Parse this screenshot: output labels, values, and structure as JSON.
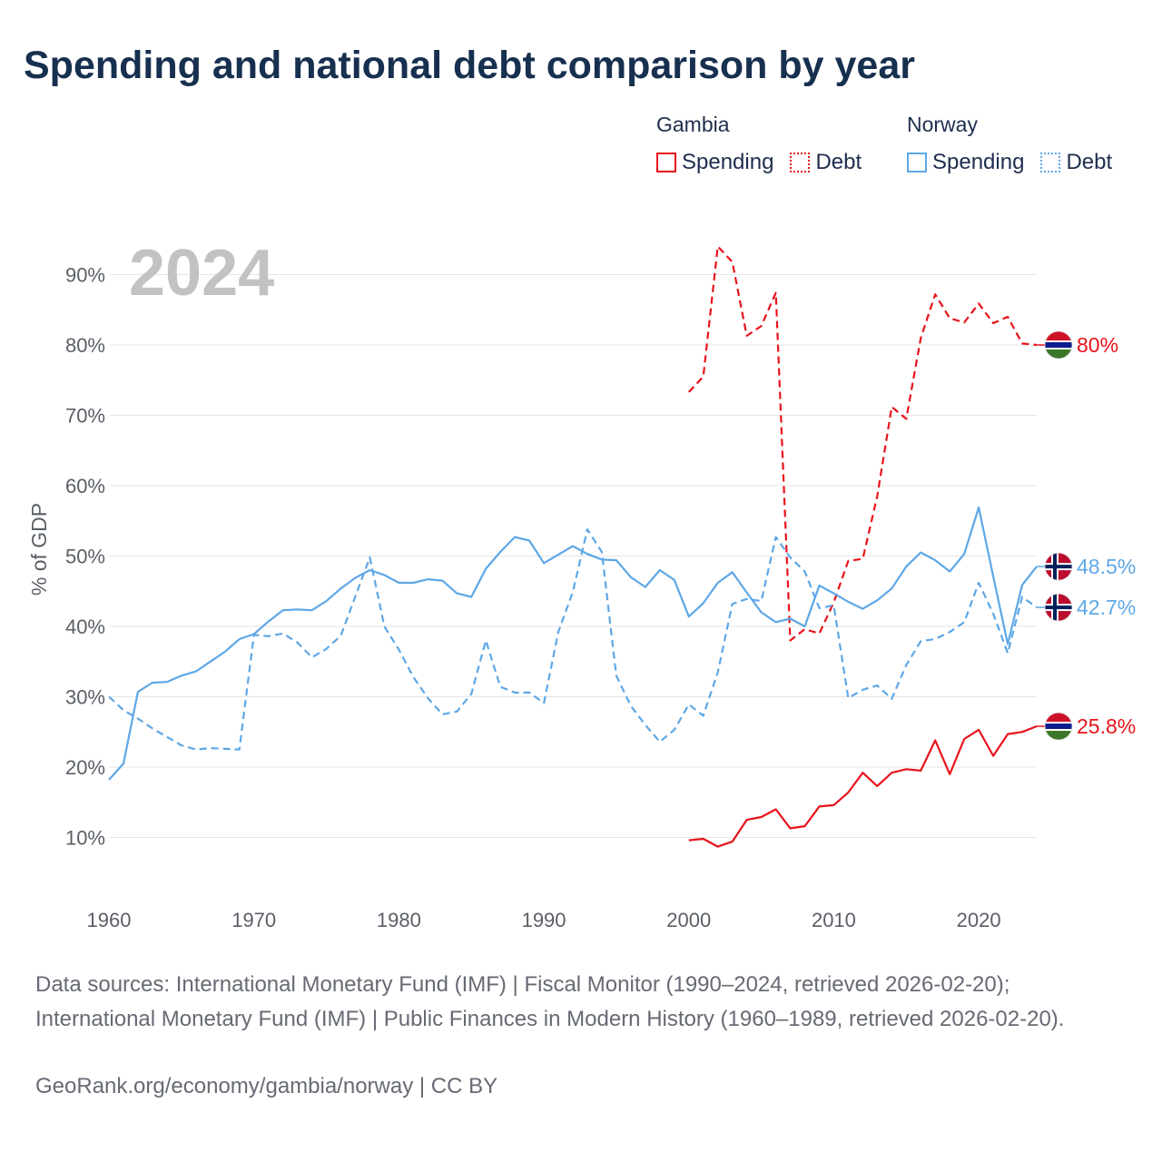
{
  "title": "Spending and national debt comparison by year",
  "legend": {
    "groups": [
      {
        "country": "Gambia",
        "items": [
          {
            "label": "Spending",
            "color": "#e8131b",
            "style": "solid"
          },
          {
            "label": "Debt",
            "color": "#e8131b",
            "style": "dotted"
          }
        ]
      },
      {
        "country": "Norway",
        "items": [
          {
            "label": "Spending",
            "color": "#5ea7e6",
            "style": "solid"
          },
          {
            "label": "Debt",
            "color": "#5ea7e6",
            "style": "dotted"
          }
        ]
      }
    ]
  },
  "footer": {
    "source": "Data sources: International Monetary Fund (IMF) | Fiscal Monitor (1990–2024, retrieved 2026-02-20); International Monetary Fund (IMF) | Public Finances in Modern History (1960–1989, retrieved 2026-02-20).",
    "credit": "GeoRank.org/economy/gambia/norway | CC BY"
  },
  "chart_data": {
    "type": "line",
    "year_label": "2024",
    "ylabel": "% of GDP",
    "xlim": [
      1960,
      2024
    ],
    "ylim": [
      0,
      100
    ],
    "x_ticks": [
      1960,
      1970,
      1980,
      1990,
      2000,
      2010,
      2020
    ],
    "x_tick_labels": [
      "1960",
      "1970",
      "1980",
      "1990",
      "2000",
      "2010",
      "2020"
    ],
    "y_ticks": [
      10,
      20,
      30,
      40,
      50,
      60,
      70,
      80,
      90
    ],
    "y_tick_labels": [
      "10%",
      "20%",
      "30%",
      "40%",
      "50%",
      "60%",
      "70%",
      "80%",
      "90%"
    ],
    "grid": true,
    "series": [
      {
        "name": "Gambia Spending",
        "country": "Gambia",
        "kind": "Spending",
        "color": "#e8131b",
        "dash": "solid",
        "flag": "gambia",
        "end_label": "25.8%",
        "x": [
          2000,
          2001,
          2002,
          2003,
          2004,
          2005,
          2006,
          2007,
          2008,
          2009,
          2010,
          2011,
          2012,
          2013,
          2014,
          2015,
          2016,
          2017,
          2018,
          2019,
          2020,
          2021,
          2022,
          2023,
          2024
        ],
        "values": [
          9.6,
          9.8,
          8.7,
          9.4,
          12.5,
          12.9,
          14.0,
          11.3,
          11.6,
          14.4,
          14.6,
          16.4,
          19.2,
          17.3,
          19.2,
          19.7,
          19.5,
          23.8,
          19.0,
          24.0,
          25.3,
          21.6,
          24.7,
          25.0,
          25.8
        ]
      },
      {
        "name": "Gambia Debt",
        "country": "Gambia",
        "kind": "Debt",
        "color": "#e8131b",
        "dash": "dashed",
        "flag": "gambia",
        "end_label": "80%",
        "x": [
          2000,
          2001,
          2002,
          2003,
          2004,
          2005,
          2006,
          2007,
          2008,
          2009,
          2010,
          2011,
          2012,
          2013,
          2014,
          2015,
          2016,
          2017,
          2018,
          2019,
          2020,
          2021,
          2022,
          2023,
          2024
        ],
        "values": [
          73.3,
          75.5,
          94.0,
          91.8,
          81.3,
          82.7,
          87.4,
          38.0,
          39.6,
          39.0,
          43.4,
          49.3,
          49.6,
          58.5,
          71.2,
          69.5,
          81.0,
          87.2,
          83.8,
          83.2,
          85.9,
          83.1,
          84.0,
          80.2,
          80.0
        ]
      },
      {
        "name": "Norway Spending",
        "country": "Norway",
        "kind": "Spending",
        "color": "#5ea7e6",
        "dash": "solid",
        "flag": "norway",
        "end_label": "48.5%",
        "x": [
          1960,
          1961,
          1962,
          1963,
          1964,
          1965,
          1966,
          1967,
          1968,
          1969,
          1970,
          1971,
          1972,
          1973,
          1974,
          1975,
          1976,
          1977,
          1978,
          1979,
          1980,
          1981,
          1982,
          1983,
          1984,
          1985,
          1986,
          1987,
          1988,
          1989,
          1990,
          1991,
          1992,
          1993,
          1994,
          1995,
          1996,
          1997,
          1998,
          1999,
          2000,
          2001,
          2002,
          2003,
          2004,
          2005,
          2006,
          2007,
          2008,
          2009,
          2010,
          2011,
          2012,
          2013,
          2014,
          2015,
          2016,
          2017,
          2018,
          2019,
          2020,
          2021,
          2022,
          2023,
          2024
        ],
        "values": [
          18.2,
          20.5,
          30.7,
          32.0,
          32.1,
          33.0,
          33.6,
          35.0,
          36.4,
          38.2,
          38.9,
          40.7,
          42.3,
          42.4,
          42.3,
          43.6,
          45.4,
          46.9,
          48.0,
          47.3,
          46.2,
          46.2,
          46.7,
          46.5,
          44.7,
          44.2,
          48.2,
          50.6,
          52.7,
          52.2,
          49.0,
          50.2,
          51.4,
          50.3,
          49.5,
          49.4,
          47.0,
          45.6,
          48.0,
          46.6,
          41.4,
          43.3,
          46.2,
          47.7,
          44.8,
          42.0,
          40.6,
          41.1,
          40.0,
          45.8,
          44.7,
          43.5,
          42.5,
          43.7,
          45.4,
          48.5,
          50.5,
          49.4,
          47.8,
          50.3,
          56.9,
          47.1,
          37.5,
          45.9,
          48.5
        ]
      },
      {
        "name": "Norway Debt",
        "country": "Norway",
        "kind": "Debt",
        "color": "#5ea7e6",
        "dash": "dashed",
        "flag": "norway",
        "end_label": "42.7%",
        "x": [
          1960,
          1961,
          1962,
          1963,
          1964,
          1965,
          1966,
          1967,
          1968,
          1969,
          1970,
          1971,
          1972,
          1973,
          1974,
          1975,
          1976,
          1977,
          1978,
          1979,
          1980,
          1981,
          1982,
          1983,
          1984,
          1985,
          1986,
          1987,
          1988,
          1989,
          1990,
          1991,
          1992,
          1993,
          1994,
          1995,
          1996,
          1997,
          1998,
          1999,
          2000,
          2001,
          2002,
          2003,
          2004,
          2005,
          2006,
          2007,
          2008,
          2009,
          2010,
          2011,
          2012,
          2013,
          2014,
          2015,
          2016,
          2017,
          2018,
          2019,
          2020,
          2021,
          2022,
          2023,
          2024
        ],
        "values": [
          30.0,
          28.1,
          26.9,
          25.5,
          24.3,
          23.1,
          22.5,
          22.7,
          22.6,
          22.5,
          38.8,
          38.6,
          39.0,
          37.7,
          35.6,
          36.8,
          38.7,
          44.3,
          49.8,
          40.0,
          36.7,
          32.8,
          29.8,
          27.5,
          27.9,
          30.4,
          38.0,
          31.4,
          30.6,
          30.6,
          29.1,
          39.2,
          44.9,
          53.8,
          50.6,
          33.0,
          28.7,
          26.0,
          23.6,
          25.3,
          28.9,
          27.3,
          33.5,
          43.2,
          43.9,
          43.6,
          52.7,
          49.8,
          47.8,
          42.6,
          43.0,
          29.8,
          31.0,
          31.6,
          29.7,
          34.5,
          37.9,
          38.2,
          39.2,
          40.6,
          46.2,
          41.8,
          36.2,
          44.2,
          42.7
        ]
      }
    ]
  }
}
